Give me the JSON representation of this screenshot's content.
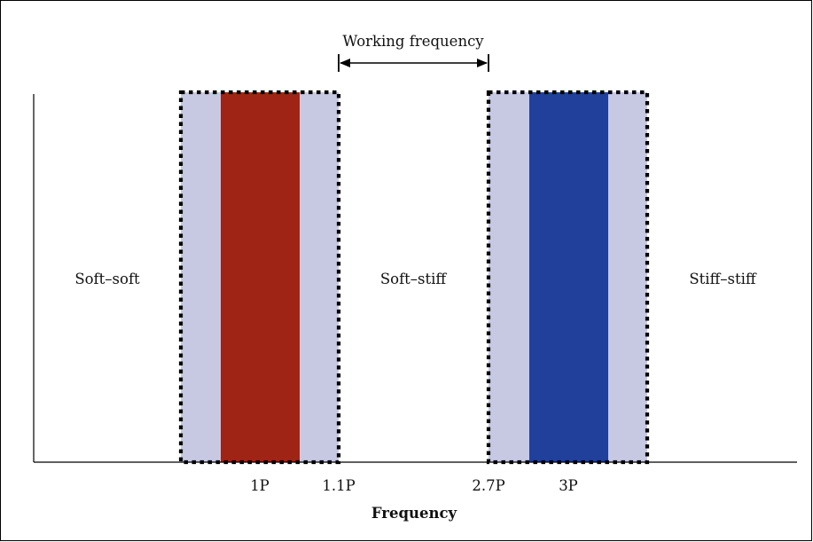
{
  "diagram": {
    "regions": [
      {
        "id": "soft-soft",
        "label": "Soft–soft"
      },
      {
        "id": "soft-stiff",
        "label": "Soft–stiff"
      },
      {
        "id": "stiff-stiff",
        "label": "Stiff–stiff"
      }
    ],
    "annotation": {
      "label": "Working frequency"
    },
    "ticks": [
      {
        "id": "1p",
        "label": "1P"
      },
      {
        "id": "1-1p",
        "label": "1.1P"
      },
      {
        "id": "2-7p",
        "label": "2.7P"
      },
      {
        "id": "3p",
        "label": "3P"
      }
    ],
    "x_axis_label": "Frequency",
    "colors": {
      "band_fill": "#c7c8e2",
      "one_p_fill": "#a02416",
      "three_p_fill": "#21409b",
      "outline": "#000000"
    }
  }
}
